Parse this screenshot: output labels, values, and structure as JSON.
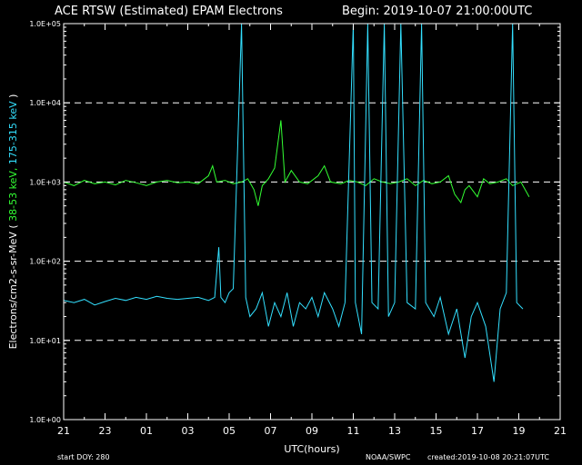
{
  "chart_data": {
    "type": "line",
    "title": "ACE RTSW (Estimated) EPAM Electrons",
    "begin": "Begin: 2019-10-07 21:00:00UTC",
    "xlabel": "UTC(hours)",
    "ylabel": {
      "prefix": "Electrons/cm2-s-sr-MeV ( ",
      "low": "38-53 keV,",
      "high": "175-315 keV",
      "suffix": " )"
    },
    "x_range_hours": [
      0,
      24
    ],
    "x_ticks": [
      "21",
      "23",
      "01",
      "03",
      "05",
      "07",
      "09",
      "11",
      "13",
      "15",
      "17",
      "19",
      "21"
    ],
    "y_scale": "log",
    "ylim": [
      1,
      100000
    ],
    "y_ticks": [
      "1.0E+00",
      "1.0E+01",
      "1.0E+02",
      "1.0E+03",
      "1.0E+04",
      "1.0E+05"
    ],
    "gridlines_dashed_at": [
      10,
      100,
      1000,
      10000
    ],
    "series": [
      {
        "name": "38-53 keV",
        "color": "#33ff33",
        "points": [
          [
            0,
            1000
          ],
          [
            0.5,
            900
          ],
          [
            1,
            1050
          ],
          [
            1.5,
            950
          ],
          [
            2,
            1000
          ],
          [
            2.5,
            920
          ],
          [
            3,
            1050
          ],
          [
            3.5,
            980
          ],
          [
            4,
            900
          ],
          [
            4.5,
            1000
          ],
          [
            5,
            1050
          ],
          [
            5.5,
            980
          ],
          [
            6,
            1000
          ],
          [
            6.5,
            950
          ],
          [
            7,
            1200
          ],
          [
            7.2,
            1600
          ],
          [
            7.4,
            1000
          ],
          [
            7.8,
            1050
          ],
          [
            8.2,
            950
          ],
          [
            8.6,
            1000
          ],
          [
            8.9,
            1100
          ],
          [
            9.2,
            800
          ],
          [
            9.4,
            500
          ],
          [
            9.6,
            900
          ],
          [
            9.9,
            1100
          ],
          [
            10.2,
            1500
          ],
          [
            10.5,
            6000
          ],
          [
            10.7,
            1000
          ],
          [
            11,
            1400
          ],
          [
            11.4,
            1000
          ],
          [
            11.8,
            950
          ],
          [
            12.3,
            1200
          ],
          [
            12.6,
            1600
          ],
          [
            12.9,
            1000
          ],
          [
            13.4,
            950
          ],
          [
            13.8,
            1050
          ],
          [
            14.2,
            1000
          ],
          [
            14.6,
            900
          ],
          [
            15,
            1100
          ],
          [
            15.4,
            1000
          ],
          [
            15.8,
            950
          ],
          [
            16.2,
            1000
          ],
          [
            16.6,
            1100
          ],
          [
            17,
            900
          ],
          [
            17.4,
            1050
          ],
          [
            17.8,
            950
          ],
          [
            18.2,
            1000
          ],
          [
            18.6,
            1200
          ],
          [
            18.9,
            700
          ],
          [
            19.2,
            550
          ],
          [
            19.4,
            800
          ],
          [
            19.6,
            900
          ],
          [
            20,
            650
          ],
          [
            20.3,
            1100
          ],
          [
            20.6,
            950
          ],
          [
            21,
            1000
          ],
          [
            21.4,
            1100
          ],
          [
            21.7,
            900
          ],
          [
            22.1,
            1000
          ],
          [
            22.5,
            650
          ]
        ]
      },
      {
        "name": "175-315 keV",
        "color": "#33e0ff",
        "points": [
          [
            0,
            32
          ],
          [
            0.5,
            30
          ],
          [
            1,
            33
          ],
          [
            1.5,
            28
          ],
          [
            2,
            31
          ],
          [
            2.5,
            34
          ],
          [
            3,
            32
          ],
          [
            3.5,
            35
          ],
          [
            4,
            33
          ],
          [
            4.5,
            36
          ],
          [
            5,
            34
          ],
          [
            5.5,
            33
          ],
          [
            6,
            34
          ],
          [
            6.5,
            35
          ],
          [
            7,
            32
          ],
          [
            7.3,
            35
          ],
          [
            7.5,
            150
          ],
          [
            7.6,
            35
          ],
          [
            7.8,
            30
          ],
          [
            8,
            40
          ],
          [
            8.2,
            45
          ],
          [
            8.6,
            100000
          ],
          [
            8.8,
            35
          ],
          [
            9,
            20
          ],
          [
            9.3,
            25
          ],
          [
            9.6,
            40
          ],
          [
            9.9,
            15
          ],
          [
            10.2,
            30
          ],
          [
            10.5,
            20
          ],
          [
            10.8,
            40
          ],
          [
            11.1,
            15
          ],
          [
            11.4,
            30
          ],
          [
            11.7,
            25
          ],
          [
            12,
            35
          ],
          [
            12.3,
            20
          ],
          [
            12.6,
            40
          ],
          [
            13,
            25
          ],
          [
            13.3,
            15
          ],
          [
            13.6,
            30
          ],
          [
            14,
            100000
          ],
          [
            14.1,
            30
          ],
          [
            14.4,
            12
          ],
          [
            14.7,
            100000
          ],
          [
            14.9,
            30
          ],
          [
            15.2,
            25
          ],
          [
            15.5,
            100000
          ],
          [
            15.7,
            20
          ],
          [
            16,
            30
          ],
          [
            16.3,
            100000
          ],
          [
            16.6,
            30
          ],
          [
            17,
            25
          ],
          [
            17.3,
            100000
          ],
          [
            17.5,
            30
          ],
          [
            17.9,
            20
          ],
          [
            18.2,
            35
          ],
          [
            18.6,
            12
          ],
          [
            19,
            25
          ],
          [
            19.4,
            6
          ],
          [
            19.7,
            20
          ],
          [
            20,
            30
          ],
          [
            20.4,
            15
          ],
          [
            20.8,
            3
          ],
          [
            21.1,
            25
          ],
          [
            21.4,
            40
          ],
          [
            21.7,
            100000
          ],
          [
            21.9,
            30
          ],
          [
            22.2,
            25
          ]
        ]
      }
    ]
  },
  "footer": {
    "start_doy": "start DOY:  280",
    "source": "NOAA/SWPC",
    "created": "created:2019-10-08 20:21:07UTC"
  }
}
